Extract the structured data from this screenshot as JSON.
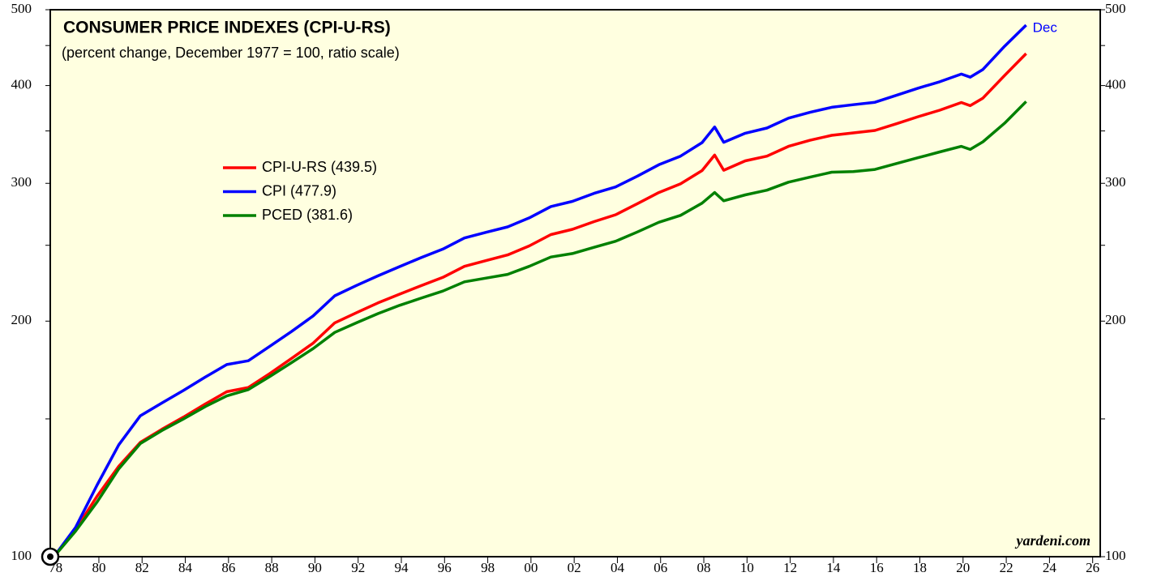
{
  "chart_data": {
    "type": "line",
    "title": "CONSUMER PRICE INDEXES (CPI-U-RS)",
    "subtitle": "(percent change, December 1977 = 100, ratio scale)",
    "annotations": [
      "Dec",
      "yardeni.com"
    ],
    "log_scale_y": true,
    "legend": "upper left",
    "x": [
      1977.92,
      1978.92,
      1979.92,
      1980.92,
      1981.92,
      1982.92,
      1983.92,
      1984.92,
      1985.92,
      1986.92,
      1987.92,
      1988.92,
      1989.92,
      1990.92,
      1991.92,
      1992.92,
      1993.92,
      1994.92,
      1995.92,
      1996.92,
      1997.92,
      1998.92,
      1999.92,
      2000.92,
      2001.92,
      2002.92,
      2003.92,
      2004.92,
      2005.92,
      2006.92,
      2007.92,
      2008.5,
      2008.92,
      2009.92,
      2010.92,
      2011.92,
      2012.92,
      2013.92,
      2014.92,
      2015.92,
      2016.92,
      2017.92,
      2018.92,
      2019.92,
      2020.33,
      2020.92,
      2021.92,
      2022.92
    ],
    "series": [
      {
        "name": "CPI-U-RS (439.5)",
        "color": "#ff0000",
        "values": [
          100,
          108.3,
          119.5,
          130.5,
          140.0,
          145.5,
          150.8,
          156.7,
          162.5,
          164.5,
          171.5,
          179.2,
          187.5,
          199.0,
          205.0,
          211.0,
          216.5,
          222.0,
          227.5,
          235.0,
          239.0,
          243.0,
          249.5,
          258.0,
          262.0,
          268.0,
          273.5,
          282.5,
          292.0,
          299.5,
          311.5,
          326.0,
          311.8,
          320.5,
          325.0,
          334.5,
          340.5,
          345.5,
          348.0,
          350.5,
          357.5,
          365.0,
          372.0,
          380.5,
          377.0,
          385.5,
          412.0,
          439.5
        ]
      },
      {
        "name": "CPI (477.9)",
        "color": "#0000ff",
        "values": [
          100,
          109.0,
          123.5,
          139.0,
          151.4,
          157.2,
          163.1,
          169.6,
          176.0,
          178.0,
          185.8,
          194.0,
          203.1,
          215.5,
          222.1,
          228.5,
          234.8,
          241.1,
          247.2,
          255.4,
          259.7,
          263.9,
          271.0,
          280.2,
          284.5,
          291.3,
          296.8,
          306.4,
          316.9,
          325.0,
          338.2,
          354.1,
          338.5,
          347.7,
          353.0,
          363.4,
          369.7,
          375.2,
          378.1,
          380.8,
          388.7,
          396.9,
          404.5,
          413.8,
          410.0,
          419.4,
          449.0,
          477.9
        ]
      },
      {
        "name": "PCED (381.6)",
        "color": "#008000",
        "values": [
          100,
          107.8,
          117.5,
          129.5,
          139.5,
          145.0,
          150.0,
          155.5,
          160.5,
          163.5,
          170.0,
          177.0,
          184.5,
          193.5,
          199.0,
          204.5,
          209.5,
          214.0,
          218.5,
          224.5,
          227.0,
          229.5,
          235.0,
          241.5,
          244.0,
          248.5,
          253.0,
          260.0,
          267.5,
          273.0,
          283.0,
          292.0,
          285.0,
          290.0,
          294.0,
          301.0,
          305.5,
          310.0,
          310.5,
          312.5,
          318.0,
          323.5,
          329.0,
          334.5,
          331.5,
          339.0,
          358.0,
          381.6
        ]
      }
    ],
    "xlim": [
      1977.75,
      2026.35
    ],
    "xticks": [
      {
        "value": 1978,
        "label": "78"
      },
      {
        "value": 1980,
        "label": "80"
      },
      {
        "value": 1982,
        "label": "82"
      },
      {
        "value": 1984,
        "label": "84"
      },
      {
        "value": 1986,
        "label": "86"
      },
      {
        "value": 1988,
        "label": "88"
      },
      {
        "value": 1990,
        "label": "90"
      },
      {
        "value": 1992,
        "label": "92"
      },
      {
        "value": 1994,
        "label": "94"
      },
      {
        "value": 1996,
        "label": "96"
      },
      {
        "value": 1998,
        "label": "98"
      },
      {
        "value": 2000,
        "label": "00"
      },
      {
        "value": 2002,
        "label": "02"
      },
      {
        "value": 2004,
        "label": "04"
      },
      {
        "value": 2006,
        "label": "06"
      },
      {
        "value": 2008,
        "label": "08"
      },
      {
        "value": 2010,
        "label": "10"
      },
      {
        "value": 2012,
        "label": "12"
      },
      {
        "value": 2014,
        "label": "14"
      },
      {
        "value": 2016,
        "label": "16"
      },
      {
        "value": 2018,
        "label": "18"
      },
      {
        "value": 2020,
        "label": "20"
      },
      {
        "value": 2022,
        "label": "22"
      },
      {
        "value": 2024,
        "label": "24"
      },
      {
        "value": 2026,
        "label": "26"
      }
    ],
    "ylim": [
      100,
      500
    ],
    "yticks": [
      100,
      200,
      300,
      400,
      500
    ],
    "yminor": [
      150,
      250,
      350,
      450
    ],
    "background": "#ffffe0"
  }
}
